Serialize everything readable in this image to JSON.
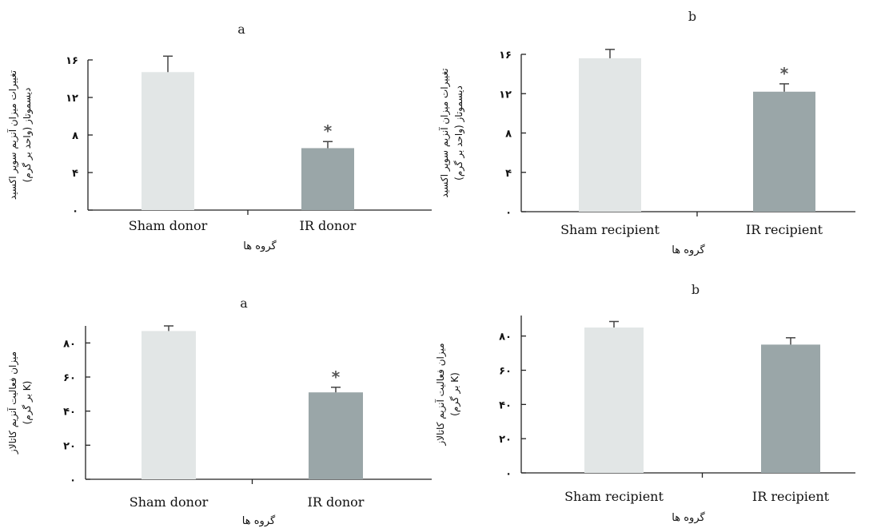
{
  "chart_data": [
    {
      "type": "bar",
      "title": "a",
      "categories": [
        "Sham donor",
        "IR donor"
      ],
      "values": [
        14.7,
        6.6
      ],
      "errors": [
        1.7,
        0.7
      ],
      "significance": [
        "",
        "*"
      ],
      "ylim": [
        0,
        16
      ],
      "yticks": [
        0,
        4,
        8,
        12,
        16
      ],
      "ytick_labels": [
        "٠",
        "۴",
        "٨",
        "١٢",
        "١۶"
      ],
      "xlabel": "گروه ها",
      "ylabel_lines": [
        "تغییرات میزان آنزیم سوپر اکسید",
        "دیسموتاز (واحد بر گرم)"
      ],
      "colors": [
        "#e2e6e6",
        "#9aa6a8"
      ],
      "grid": false
    },
    {
      "type": "bar",
      "title": "b",
      "categories": [
        "Sham recipient",
        "IR recipient"
      ],
      "values": [
        15.6,
        12.2
      ],
      "errors": [
        0.9,
        0.8
      ],
      "significance": [
        "",
        "*"
      ],
      "ylim": [
        0,
        16
      ],
      "yticks": [
        0,
        4,
        8,
        12,
        16
      ],
      "ytick_labels": [
        "٠",
        "۴",
        "٨",
        "١٢",
        "١۶"
      ],
      "xlabel": "گروه ها",
      "ylabel_lines": [
        "تغییرات میزان آنزیم سوپر اکسید",
        "دیسموتاز (واحد بر گرم)"
      ],
      "colors": [
        "#e2e6e6",
        "#9aa6a8"
      ],
      "grid": false
    },
    {
      "type": "bar",
      "title": "a",
      "categories": [
        "Sham donor",
        "IR donor"
      ],
      "values": [
        87,
        51
      ],
      "errors": [
        3,
        3
      ],
      "significance": [
        "",
        "*"
      ],
      "ylim": [
        0,
        90
      ],
      "yticks": [
        0,
        20,
        40,
        60,
        80
      ],
      "ytick_labels": [
        "٠",
        "٢٠",
        "۴٠",
        "۶٠",
        "٨٠"
      ],
      "xlabel": "گروه ها",
      "ylabel_lines": [
        "میزان فعالیت آنزیم کاتالاز",
        "(K بر گرم)"
      ],
      "colors": [
        "#e2e6e6",
        "#9aa6a8"
      ],
      "grid": false
    },
    {
      "type": "bar",
      "title": "b",
      "categories": [
        "Sham recipient",
        "IR recipient"
      ],
      "values": [
        85,
        75
      ],
      "errors": [
        3.5,
        4
      ],
      "significance": [
        "",
        ""
      ],
      "ylim": [
        0,
        92
      ],
      "yticks": [
        0,
        20,
        40,
        60,
        80
      ],
      "ytick_labels": [
        "٠",
        "٢٠",
        "۴٠",
        "۶٠",
        "٨٠"
      ],
      "xlabel": "گروه ها",
      "ylabel_lines": [
        "میزان فعالیت آنزیم کاتالاز",
        "(K بر گرم)"
      ],
      "colors": [
        "#e2e6e6",
        "#9aa6a8"
      ],
      "grid": false
    }
  ]
}
